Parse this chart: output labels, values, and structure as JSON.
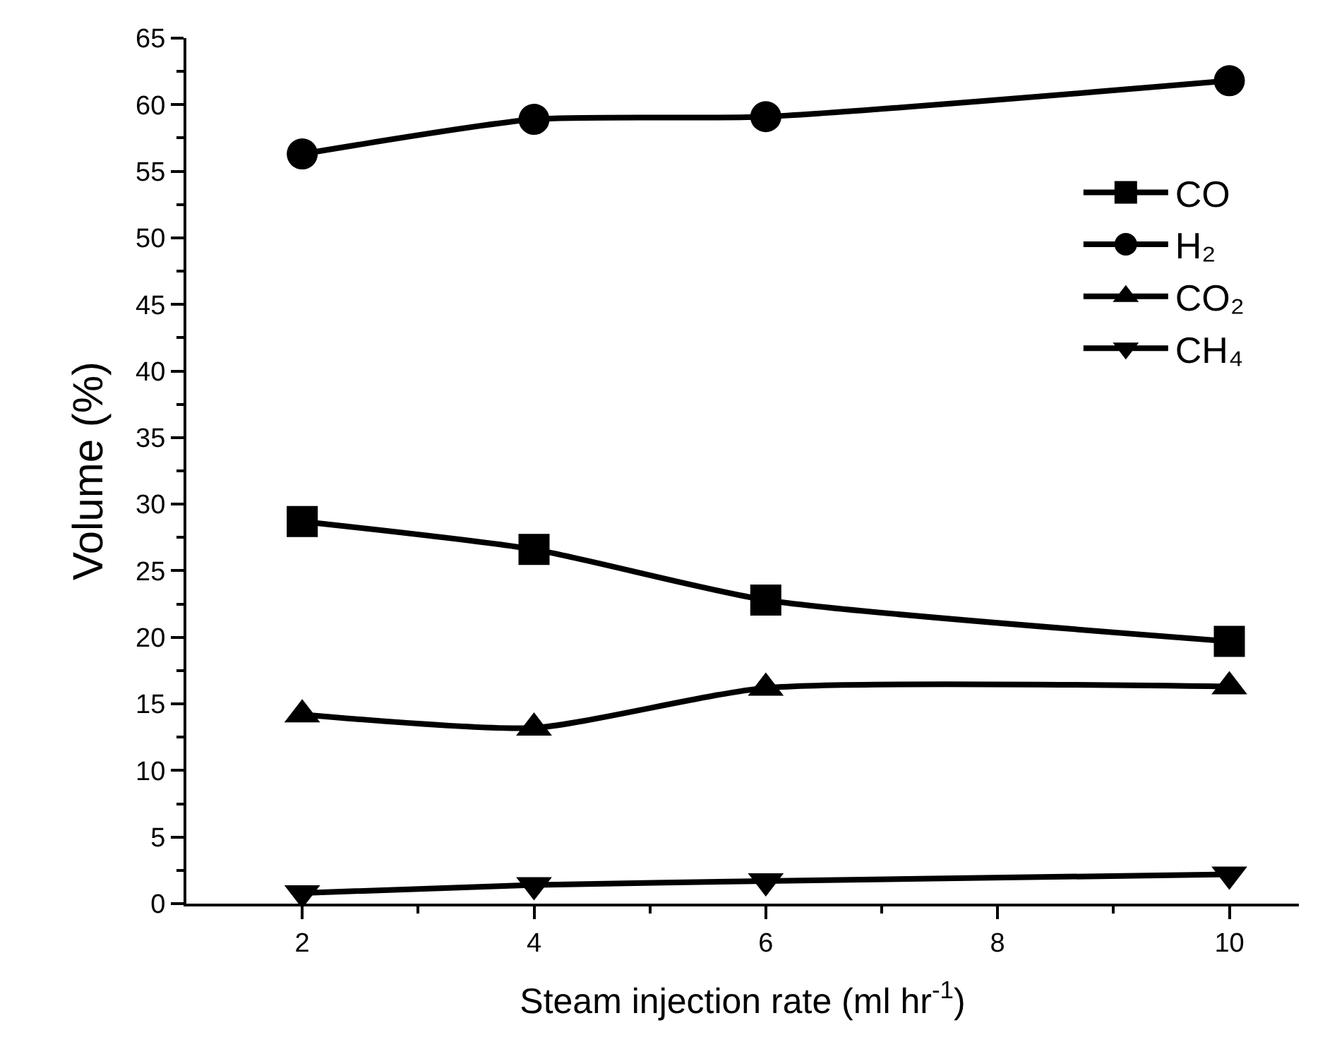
{
  "chart_data": {
    "type": "line",
    "xlabel": "Steam injection rate (ml hr$^{-1}$)",
    "ylabel": "Volume (%)",
    "x": [
      2,
      4,
      6,
      10
    ],
    "series": [
      {
        "name": "CO",
        "color": "#000000",
        "marker": "square",
        "values": [
          28.7,
          26.6,
          22.8,
          19.7
        ]
      },
      {
        "name": "H₂",
        "color": "#000000",
        "marker": "circle",
        "values": [
          56.3,
          58.9,
          59.1,
          61.8
        ]
      },
      {
        "name": "CO₂",
        "color": "#000000",
        "marker": "triangle",
        "values": [
          14.2,
          13.2,
          16.2,
          16.3
        ]
      },
      {
        "name": "CH₄",
        "color": "#000000",
        "marker": "triangle-down",
        "values": [
          0.8,
          1.4,
          1.7,
          2.2
        ]
      }
    ],
    "xlim": [
      1,
      10.6
    ],
    "xticks": [
      2,
      4,
      6,
      8,
      10
    ],
    "ylim": [
      0,
      65
    ],
    "yticks": [
      0,
      5,
      10,
      15,
      20,
      25,
      30,
      35,
      40,
      45,
      50,
      55,
      60,
      65
    ],
    "grid": false,
    "legend": "top right",
    "line_style": "solid"
  }
}
